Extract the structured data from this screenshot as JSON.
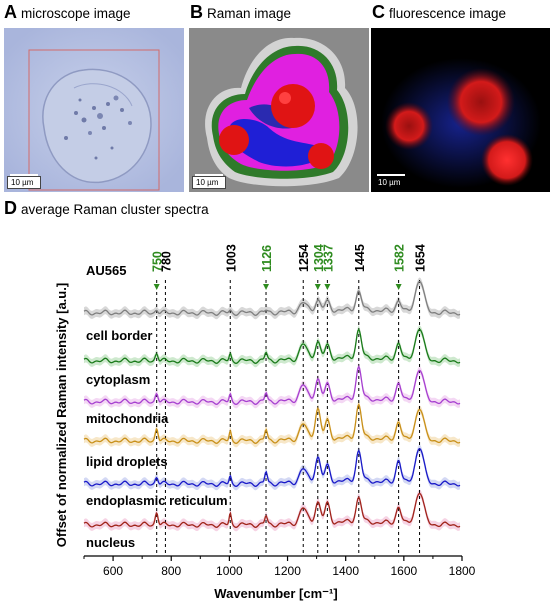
{
  "panels": {
    "a": {
      "letter": "A",
      "title": "microscope image",
      "scalebar": "10 µm"
    },
    "b": {
      "letter": "B",
      "title": "Raman image",
      "scalebar": "10 µm"
    },
    "c": {
      "letter": "C",
      "title": "fluorescence image",
      "scalebar": "10 µm"
    },
    "d": {
      "letter": "D",
      "title": "average Raman cluster spectra"
    }
  },
  "colors": {
    "green_label": "#2e8b1f",
    "black_label": "#000000",
    "raman_gray": "#8a8a8a",
    "raman_green": "#2f7a2a",
    "raman_blue": "#1f1fd6",
    "raman_magenta": "#e020e0",
    "raman_red": "#e01414",
    "fluor_red": "#d31a1a",
    "fluor_blue": "#1c2bb0"
  },
  "chart_data": {
    "type": "line",
    "xlabel": "Wavenumber [cm⁻¹]",
    "ylabel": "Offset of normalized Raman intensity [a.u.]",
    "xlim": [
      500,
      1800
    ],
    "xticks": [
      600,
      800,
      1000,
      1200,
      1400,
      1600,
      1800
    ],
    "peaks": [
      {
        "x": 750,
        "label": "750",
        "color": "green",
        "arrow": true
      },
      {
        "x": 780,
        "label": "780",
        "color": "black",
        "arrow": false
      },
      {
        "x": 1003,
        "label": "1003",
        "color": "black",
        "arrow": false
      },
      {
        "x": 1126,
        "label": "1126",
        "color": "green",
        "arrow": true
      },
      {
        "x": 1254,
        "label": "1254",
        "color": "black",
        "arrow": false
      },
      {
        "x": 1304,
        "label": "1304",
        "color": "green",
        "arrow": true
      },
      {
        "x": 1337,
        "label": "1337",
        "color": "green",
        "arrow": true
      },
      {
        "x": 1445,
        "label": "1445",
        "color": "black",
        "arrow": false
      },
      {
        "x": 1582,
        "label": "1582",
        "color": "green",
        "arrow": true
      },
      {
        "x": 1654,
        "label": "1654",
        "color": "black",
        "arrow": false
      }
    ],
    "series": [
      {
        "name": "AU565",
        "color": "#7f7f7f",
        "band": "#c8c8c8",
        "heights": {
          "750": 0.1,
          "1003": 0.06,
          "1126": 0.05,
          "1254": 0.22,
          "1304": 0.28,
          "1337": 0.22,
          "1445": 0.5,
          "1582": 0.3,
          "1654": 0.85
        },
        "baseline": 0.03
      },
      {
        "name": "cell border",
        "color": "#1a7a1a",
        "band": "#b9e0b9",
        "heights": {
          "750": 0.22,
          "1003": 0.18,
          "1126": 0.2,
          "1254": 0.4,
          "1304": 0.45,
          "1337": 0.32,
          "1445": 0.75,
          "1582": 0.45,
          "1654": 0.85
        },
        "baseline": 0.03
      },
      {
        "name": "cytoplasm",
        "color": "#a640d0",
        "band": "#f0c8f0",
        "heights": {
          "750": 0.25,
          "1003": 0.2,
          "1126": 0.22,
          "1254": 0.4,
          "1304": 0.55,
          "1337": 0.38,
          "1445": 0.85,
          "1582": 0.48,
          "1654": 0.85
        },
        "baseline": 0.03
      },
      {
        "name": "mitochondria",
        "color": "#c8901a",
        "band": "#f3ddb0",
        "heights": {
          "750": 0.35,
          "1003": 0.25,
          "1126": 0.28,
          "1254": 0.4,
          "1304": 0.8,
          "1337": 0.45,
          "1445": 0.88,
          "1582": 0.48,
          "1654": 0.85
        },
        "baseline": 0.03
      },
      {
        "name": "lipid droplets",
        "color": "#1a1ac8",
        "band": "#c0c8f0",
        "heights": {
          "750": 0.2,
          "1003": 0.2,
          "1126": 0.3,
          "1254": 0.35,
          "1304": 0.65,
          "1337": 0.4,
          "1445": 0.8,
          "1582": 0.6,
          "1654": 0.95
        },
        "baseline": 0.03
      },
      {
        "name": "endoplasmic reticulum",
        "color": "#a0241a",
        "band": "#f2c0d8",
        "heights": {
          "750": 0.35,
          "1003": 0.3,
          "1126": 0.22,
          "1254": 0.4,
          "1304": 0.55,
          "1337": 0.48,
          "1445": 0.65,
          "1582": 0.45,
          "1654": 0.85
        },
        "baseline": 0.03
      }
    ],
    "extra_labels": [
      "nucleus"
    ]
  }
}
